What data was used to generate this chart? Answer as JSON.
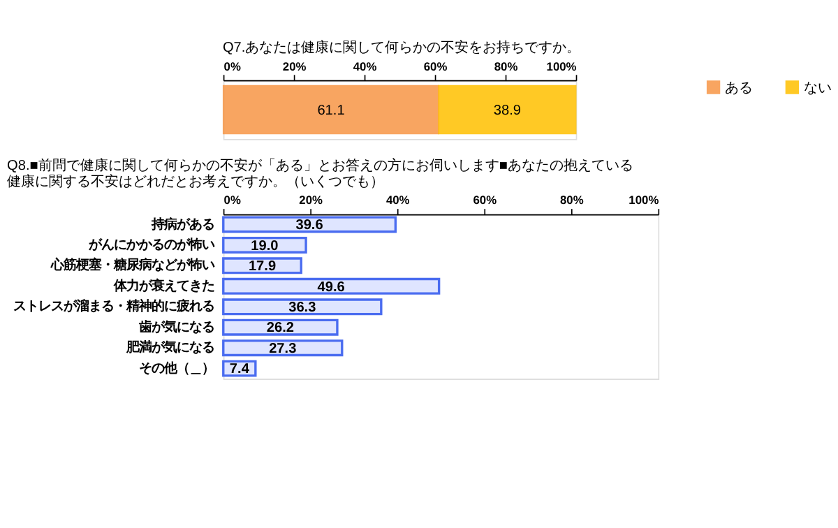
{
  "chart_data": [
    {
      "type": "bar",
      "orientation": "horizontal",
      "stacked": true,
      "title": "Q7.あなたは健康に関して何らかの不安をお持ちですか。",
      "categories": [
        null
      ],
      "series": [
        {
          "name": "ある",
          "color": "#f79646",
          "values": [
            61.1
          ]
        },
        {
          "name": "ない",
          "color": "#ffc000",
          "values": [
            38.9
          ]
        }
      ],
      "xlim": [
        0,
        100
      ],
      "xticks": [
        {
          "value": 0,
          "label": "0%"
        },
        {
          "value": 20,
          "label": "20%"
        },
        {
          "value": 40,
          "label": "40%"
        },
        {
          "value": 60,
          "label": "60%"
        },
        {
          "value": 80,
          "label": "80%"
        },
        {
          "value": 100,
          "label": "100%"
        }
      ],
      "data_labels": true,
      "legend": "right",
      "grid": false
    },
    {
      "type": "bar",
      "orientation": "horizontal",
      "title": "Q8.■前問で健康に関して何らかの不安が「ある」とお答えの方にお伺いします■あなたの抱えている健康に関する不安はどれだとお考えですか。（いくつでも）",
      "categories": [
        "持病がある",
        "がんにかかるのが怖い",
        "心筋梗塞・糖尿病などが怖い",
        "体力が衰えてきた",
        "ストレスが溜まる・精神的に疲れる",
        "歯が気になる",
        "肥満が気になる",
        "その他（＿）"
      ],
      "values": [
        39.6,
        19.0,
        17.9,
        49.6,
        36.3,
        26.2,
        27.3,
        7.4
      ],
      "value_labels": [
        "39.6",
        "19.0",
        "17.9",
        "49.6",
        "36.3",
        "26.2",
        "27.3",
        "7.4"
      ],
      "color": "#4a6cf0",
      "xlim": [
        0,
        100
      ],
      "xticks": [
        {
          "value": 0,
          "label": "0%"
        },
        {
          "value": 20,
          "label": "20%"
        },
        {
          "value": 40,
          "label": "40%"
        },
        {
          "value": 60,
          "label": "60%"
        },
        {
          "value": 80,
          "label": "80%"
        },
        {
          "value": 100,
          "label": "100%"
        }
      ],
      "grid": false
    }
  ]
}
